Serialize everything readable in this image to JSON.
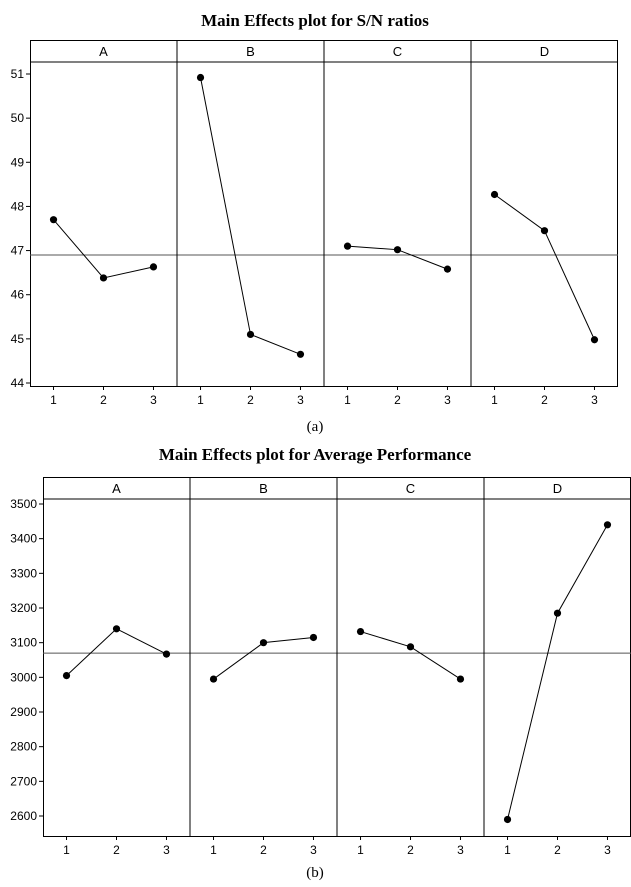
{
  "figure": {
    "panels": [
      {
        "caption": "(a)"
      },
      {
        "caption": "(b)"
      }
    ]
  },
  "chart_data": [
    {
      "type": "line",
      "title": "Main Effects plot for S/N ratios",
      "caption": "(a)",
      "xlabel": "",
      "ylabel": "",
      "ylim": [
        44,
        51
      ],
      "yticks": [
        44,
        45,
        46,
        47,
        48,
        49,
        50,
        51
      ],
      "x_ticks": [
        "1",
        "2",
        "3"
      ],
      "reference_line": 46.9,
      "grid": false,
      "legend": "none",
      "line_color": "#000000",
      "facets": [
        {
          "label": "A",
          "values": [
            47.7,
            46.38,
            46.63
          ]
        },
        {
          "label": "B",
          "values": [
            50.92,
            45.1,
            44.65
          ]
        },
        {
          "label": "C",
          "values": [
            47.1,
            47.02,
            46.58
          ]
        },
        {
          "label": "D",
          "values": [
            48.27,
            47.45,
            44.98
          ]
        }
      ]
    },
    {
      "type": "line",
      "title": "Main Effects plot for Average Performance",
      "caption": "(b)",
      "xlabel": "",
      "ylabel": "",
      "ylim": [
        2600,
        3500
      ],
      "yticks": [
        2600,
        2700,
        2800,
        2900,
        3000,
        3100,
        3200,
        3300,
        3400,
        3500
      ],
      "x_ticks": [
        "1",
        "2",
        "3"
      ],
      "reference_line": 3070,
      "grid": false,
      "legend": "none",
      "line_color": "#000000",
      "facets": [
        {
          "label": "A",
          "values": [
            3005,
            3140,
            3067
          ]
        },
        {
          "label": "B",
          "values": [
            2995,
            3100,
            3115
          ]
        },
        {
          "label": "C",
          "values": [
            3132,
            3088,
            2995
          ]
        },
        {
          "label": "D",
          "values": [
            2590,
            3185,
            3440
          ]
        }
      ]
    }
  ]
}
